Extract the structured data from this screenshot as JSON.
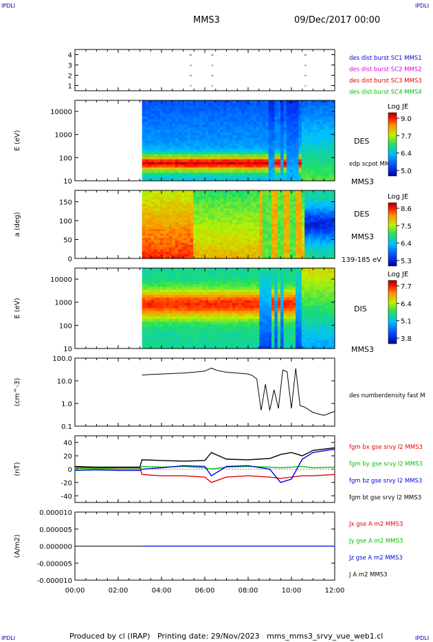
{
  "corner_left": "IPDLI",
  "corner_right": "IPDLI",
  "spacecraft": "MMS3",
  "date": "09/Dec/2017 00:00",
  "footer": "Produced by cl (IRAP)   Printing date: 29/Nov/2023   mms_mms3_srvy_vue_web1.cl",
  "footer_corner_left": "IPDLI",
  "footer_corner_right": "IPDLI",
  "colors": {
    "red": "#e00000",
    "green": "#00c000",
    "blue": "#0000e0",
    "magenta": "#e000e0",
    "black": "#000000"
  },
  "chart_data": [
    {
      "type": "scatter",
      "panel": "burst",
      "yticks": [
        "1",
        "2",
        "3",
        "4"
      ],
      "legend": [
        {
          "label": "des dist burst SC1 MMS1",
          "color": "#0000e0"
        },
        {
          "label": "des dist burst SC2 MMS2",
          "color": "#e000e0"
        },
        {
          "label": "des dist burst SC3 MMS3",
          "color": "#e00000"
        },
        {
          "label": "des dist burst SC4 MMS4",
          "color": "#00c000"
        }
      ],
      "marks_hours": [
        5.3,
        6.3,
        10.6
      ]
    },
    {
      "type": "heatmap",
      "panel": "des-energy",
      "ylabel": "E (eV)",
      "yticks": [
        "10000",
        "1000",
        "100",
        "10"
      ],
      "ylog": true,
      "ylim": [
        10,
        30000
      ],
      "label": "DES",
      "sublabel": "edp scpot MMS3",
      "sc": "MMS3",
      "colorbar": {
        "title": "Log JE",
        "ticks": [
          "9.0",
          "7.7",
          "6.4",
          "5.0"
        ],
        "range": [
          5.0,
          9.0
        ]
      },
      "data_start_hour": 3.1
    },
    {
      "type": "heatmap",
      "panel": "des-pitch",
      "ylabel": "a (deg)",
      "yticks": [
        "150",
        "100",
        "50",
        "0"
      ],
      "ylim": [
        0,
        180
      ],
      "label": "DES",
      "sc": "MMS3",
      "sublabel": "139-185 eV",
      "colorbar": {
        "title": "Log JE",
        "ticks": [
          "8.6",
          "7.5",
          "6.4",
          "5.3"
        ],
        "range": [
          5.3,
          8.6
        ]
      },
      "data_start_hour": 3.1
    },
    {
      "type": "heatmap",
      "panel": "dis-energy",
      "ylabel": "E (eV)",
      "yticks": [
        "10000",
        "1000",
        "100",
        "10"
      ],
      "ylog": true,
      "ylim": [
        10,
        30000
      ],
      "label": "DIS",
      "sc": "MMS3",
      "colorbar": {
        "title": "Log JE",
        "ticks": [
          "7.7",
          "6.4",
          "5.1",
          "3.8"
        ],
        "range": [
          3.8,
          7.7
        ]
      },
      "data_start_hour": 3.1
    },
    {
      "type": "line",
      "panel": "density",
      "ylabel": "(cm^-3)",
      "yticks": [
        "100.0",
        "10.0",
        "1.0",
        "0.1"
      ],
      "ylog": true,
      "ylim": [
        0.1,
        100
      ],
      "legend": [
        {
          "label": "des numberdensity fast M",
          "color": "#000000"
        }
      ],
      "x": [
        3.1,
        3.5,
        4.0,
        4.5,
        5.0,
        5.5,
        6.0,
        6.3,
        6.6,
        7.0,
        7.5,
        8.0,
        8.2,
        8.4,
        8.6,
        8.8,
        9.0,
        9.2,
        9.4,
        9.6,
        9.8,
        10.0,
        10.2,
        10.4,
        10.6,
        11.0,
        11.5,
        12.0
      ],
      "values": [
        18,
        19,
        20,
        21,
        22,
        24,
        27,
        36,
        28,
        24,
        22,
        20,
        17,
        12,
        0.5,
        7,
        0.5,
        4,
        0.6,
        30,
        25,
        0.6,
        35,
        0.8,
        0.7,
        0.4,
        0.3,
        0.45
      ]
    },
    {
      "type": "line",
      "panel": "magnetic",
      "ylabel": "(nT)",
      "yticks": [
        "40",
        "20",
        "0",
        "-20",
        "-40"
      ],
      "ylim": [
        -50,
        50
      ],
      "legend": [
        {
          "label": "fgm bx gse srvy l2 MMS3",
          "color": "#e00000"
        },
        {
          "label": "fgm by gse srvy l2 MMS3",
          "color": "#00c000"
        },
        {
          "label": "fgm bz gse srvy l2 MMS3",
          "color": "#0000e0"
        },
        {
          "label": "fgm bt gse srvy l2 MMS3",
          "color": "#000000"
        }
      ],
      "x": [
        0,
        1,
        2,
        3,
        3.1,
        4,
        5,
        6,
        6.3,
        7,
        8,
        9,
        9.5,
        10,
        10.5,
        11,
        12
      ],
      "series": [
        {
          "name": "fgm bx gse srvy l2 MMS3",
          "values": [
            3,
            2,
            2,
            2,
            -8,
            -10,
            -10,
            -12,
            -20,
            -12,
            -10,
            -12,
            -14,
            -12,
            -10,
            -10,
            -8
          ]
        },
        {
          "name": "fgm by gse srvy l2 MMS3",
          "values": [
            1,
            1,
            0,
            0,
            4,
            3,
            4,
            2,
            0,
            3,
            4,
            3,
            2,
            3,
            4,
            2,
            3
          ]
        },
        {
          "name": "fgm bz gse srvy l2 MMS3",
          "values": [
            -2,
            -1,
            -2,
            -2,
            0,
            2,
            5,
            4,
            -10,
            4,
            5,
            0,
            -20,
            -15,
            15,
            25,
            30
          ]
        },
        {
          "name": "fgm bt gse srvy l2 MMS3",
          "values": [
            4,
            3,
            3,
            3,
            14,
            13,
            12,
            13,
            25,
            15,
            14,
            16,
            22,
            25,
            20,
            28,
            32
          ]
        }
      ]
    },
    {
      "type": "line",
      "panel": "current",
      "ylabel": "(A/m2)",
      "yticks": [
        "0.000010",
        "0.000005",
        "0.000000",
        "-0.000005",
        "-0.000010"
      ],
      "ylim": [
        -1e-05,
        1e-05
      ],
      "legend": [
        {
          "label": "Jx gse A m2 MMS3",
          "color": "#e00000"
        },
        {
          "label": "Jy gse A m2 MMS3",
          "color": "#00c000"
        },
        {
          "label": "Jz gse A m2 MMS3",
          "color": "#0000e0"
        },
        {
          "label": "J A m2 MMS3",
          "color": "#000000"
        }
      ]
    }
  ],
  "xaxis": {
    "ticks": [
      "00:00",
      "02:00",
      "04:00",
      "06:00",
      "08:00",
      "10:00",
      "12:00"
    ],
    "range_hours": [
      0,
      12
    ]
  }
}
